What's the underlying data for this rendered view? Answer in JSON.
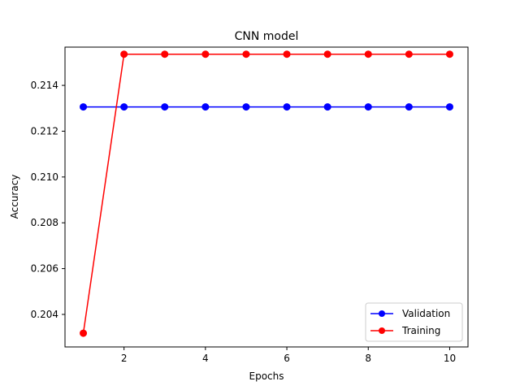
{
  "chart_data": {
    "type": "line",
    "title": "CNN model",
    "xlabel": "Epochs",
    "ylabel": "Accuracy",
    "x": [
      1,
      2,
      3,
      4,
      5,
      6,
      7,
      8,
      9,
      10
    ],
    "xlim": [
      0.55,
      10.45
    ],
    "ylim": [
      0.20258,
      0.21567
    ],
    "xticks": [
      2,
      4,
      6,
      8,
      10
    ],
    "yticks": [
      0.204,
      0.206,
      0.208,
      0.21,
      0.212,
      0.214
    ],
    "ytick_labels": [
      "0.204",
      "0.206",
      "0.208",
      "0.210",
      "0.212",
      "0.214"
    ],
    "grid": false,
    "legend_position": "lower-right",
    "series": [
      {
        "name": "Validation",
        "color": "#0000ff",
        "marker": "circle",
        "values": [
          0.21306,
          0.21306,
          0.21306,
          0.21306,
          0.21306,
          0.21306,
          0.21306,
          0.21306,
          0.21306,
          0.21306
        ]
      },
      {
        "name": "Training",
        "color": "#ff0000",
        "marker": "circle",
        "values": [
          0.20318,
          0.21536,
          0.21536,
          0.21536,
          0.21536,
          0.21536,
          0.21536,
          0.21536,
          0.21536,
          0.21536
        ]
      }
    ]
  }
}
